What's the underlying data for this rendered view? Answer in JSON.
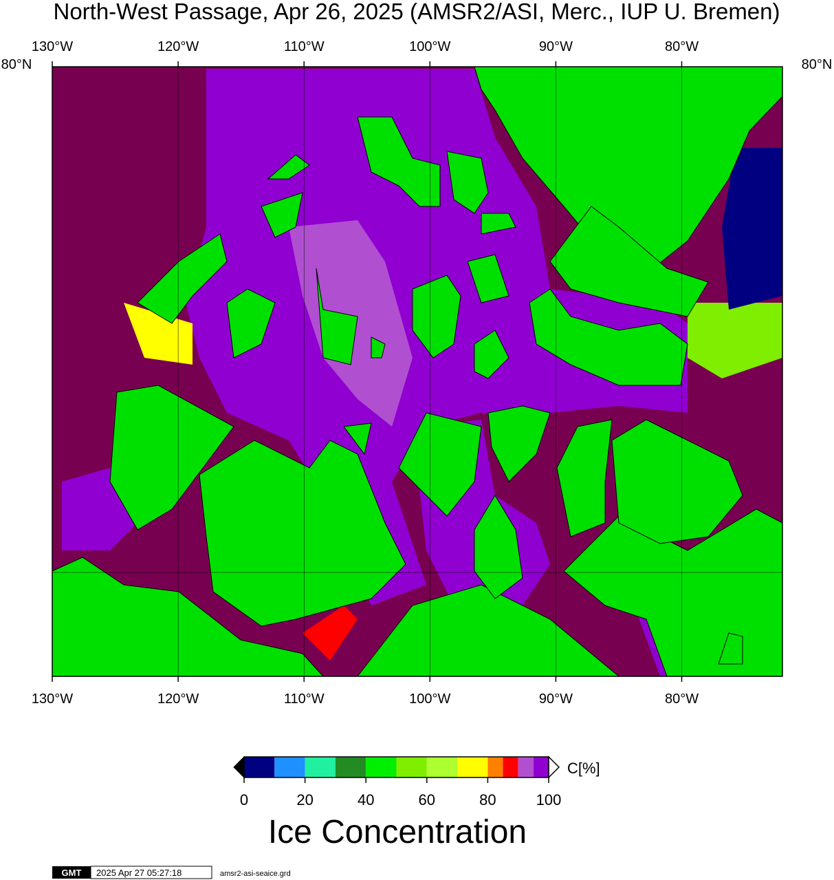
{
  "title": "North-West Passage, Apr 26, 2025 (AMSR2/ASI, Merc., IUP U. Bremen)",
  "map": {
    "xlim": [
      -130,
      -72
    ],
    "xticks": [
      {
        "value": -130,
        "label": "130°W"
      },
      {
        "value": -120,
        "label": "120°W"
      },
      {
        "value": -110,
        "label": "110°W"
      },
      {
        "value": -100,
        "label": "100°W"
      },
      {
        "value": -90,
        "label": "90°W"
      },
      {
        "value": -80,
        "label": "80°W"
      }
    ],
    "lat_label": "80°N"
  },
  "colorbar": {
    "label": "C[%]",
    "title": "Ice Concentration",
    "bounds": [
      0,
      10,
      20,
      30,
      40,
      50,
      60,
      70,
      80,
      85,
      90,
      95,
      100
    ],
    "colors": [
      "#000080",
      "#1e90ff",
      "#20f0a0",
      "#228b22",
      "#00ee00",
      "#7fee00",
      "#adff2f",
      "#ffff00",
      "#ff7f00",
      "#ff0000",
      "#b050d0",
      "#9000d0"
    ],
    "ticks": [
      0,
      20,
      40,
      60,
      80,
      100
    ]
  },
  "footer": {
    "logo": "GMT",
    "timestamp": "2025 Apr 27 05:27:18",
    "file": "amsr2-asi-seaice.grd"
  }
}
